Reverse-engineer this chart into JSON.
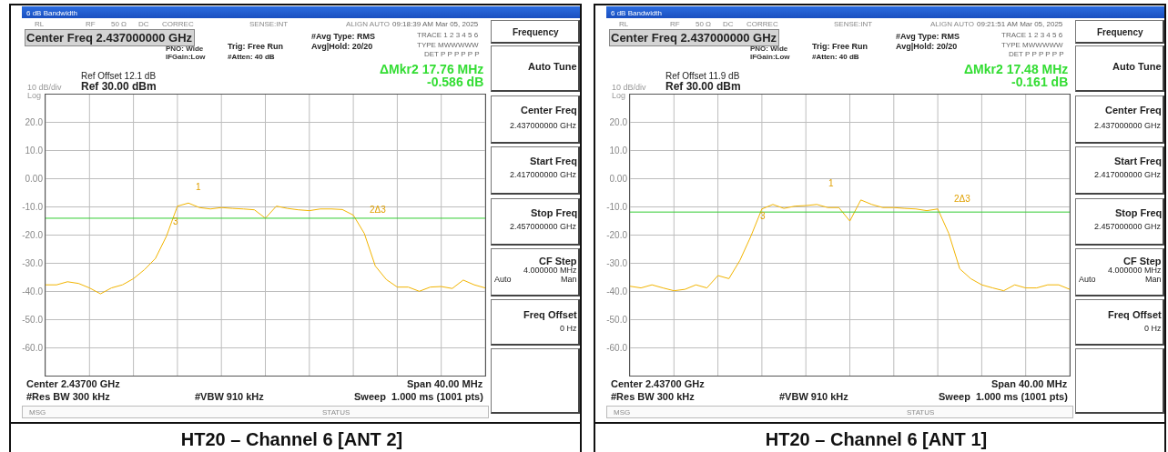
{
  "chart_data": [
    {
      "type": "line",
      "title": "HT20 – Channel 6 [ANT 2]",
      "annotations": [
        "6 dB Bandwidth",
        "RL",
        "RF",
        "50 Ω",
        "DC",
        "CORREC",
        "SENSE:INT",
        "ALIGN AUTO",
        "09:18:39 AM Mar 05, 2025",
        "Center Freq 2.437000000 GHz",
        "PNO: Wide",
        "IFGain:Low",
        "Trig: Free Run",
        "#Atten: 40 dB",
        "#Avg Type: RMS",
        "Avg|Hold: 20/20",
        "TRACE 1 2 3 4 5 6",
        "TYPE MWWWWW",
        "DET P P P P P P",
        "Ref Offset 12.1 dB",
        "Ref 30.00 dBm",
        "10 dB/div",
        "Log",
        "ΔMkr2 17.76 MHz",
        "-0.586 dB",
        "Center 2.43700 GHz",
        "Span 40.00 MHz",
        "#Res BW 300 kHz",
        "#VBW 910 kHz",
        "Sweep  1.000 ms (1001 pts)",
        "MSG",
        "STATUS",
        "Frequency",
        "Auto Tune",
        "Center Freq",
        "2.437000000 GHz",
        "Start Freq",
        "2.417000000 GHz",
        "Stop Freq",
        "2.457000000 GHz",
        "CF Step",
        "4.000000 MHz",
        "Auto",
        "Man",
        "Freq Offset",
        "0 Hz",
        "1",
        "3",
        "2Δ3"
      ],
      "categories": [
        null,
        null,
        null,
        null,
        null,
        null,
        null,
        null,
        null,
        null,
        null,
        null,
        null,
        null,
        null,
        null,
        null,
        null,
        null,
        null,
        null,
        null,
        null,
        null,
        null,
        null,
        null,
        null,
        null,
        null,
        null,
        null,
        null,
        null,
        null,
        null,
        null,
        null,
        null,
        null,
        null
      ],
      "values": [
        -37.7,
        -37.7,
        -36.6,
        -37.2,
        -38.8,
        -40.9,
        -38.8,
        -37.7,
        -35.5,
        -32.3,
        -28.3,
        -20.4,
        -9.7,
        -8.6,
        -10.2,
        -10.7,
        -10.2,
        -10.5,
        -10.7,
        -11.0,
        -14.0,
        -9.7,
        -10.5,
        -11.0,
        -11.3,
        -10.7,
        -10.7,
        -10.9,
        -12.9,
        -19.4,
        -31.0,
        -35.8,
        -38.5,
        -38.5,
        -40.0,
        -38.5,
        -38.3,
        -39.0,
        -36.0,
        -37.7,
        -38.8
      ],
      "color": "#f2b400",
      "ylim": [
        -70,
        30
      ],
      "yticks": [
        {
          "value": 20,
          "label": "20.0"
        },
        {
          "value": 10,
          "label": "10.0"
        },
        {
          "value": 0,
          "label": "0.00"
        },
        {
          "value": -10,
          "label": "-10.0"
        },
        {
          "value": -20,
          "label": "-20.0"
        },
        {
          "value": -30,
          "label": "-30.0"
        },
        {
          "value": -40,
          "label": "-40.0"
        },
        {
          "value": -50,
          "label": "-50.0"
        },
        {
          "value": -60,
          "label": "-60.0"
        }
      ],
      "tick_labels": "y",
      "grid": true,
      "ref_lines": [
        {
          "axis": "y",
          "value": -14.0,
          "color": "#33cc33"
        }
      ]
    },
    {
      "type": "line",
      "title": "HT20 – Channel 6 [ANT 1]",
      "annotations": [
        "6 dB Bandwidth",
        "RL",
        "RF",
        "50 Ω",
        "DC",
        "CORREC",
        "SENSE:INT",
        "ALIGN AUTO",
        "09:21:51 AM Mar 05, 2025",
        "Center Freq 2.437000000 GHz",
        "PNO: Wide",
        "IFGain:Low",
        "Trig: Free Run",
        "#Atten: 40 dB",
        "#Avg Type: RMS",
        "Avg|Hold: 20/20",
        "TRACE 1 2 3 4 5 6",
        "TYPE MWWWWW",
        "DET P P P P P P",
        "Ref Offset 11.9 dB",
        "Ref 30.00 dBm",
        "10 dB/div",
        "Log",
        "ΔMkr2 17.48 MHz",
        "-0.161 dB",
        "Center 2.43700 GHz",
        "Span 40.00 MHz",
        "#Res BW 300 kHz",
        "#VBW 910 kHz",
        "Sweep  1.000 ms (1001 pts)",
        "MSG",
        "STATUS",
        "Frequency",
        "Auto Tune",
        "Center Freq",
        "2.437000000 GHz",
        "Start Freq",
        "2.417000000 GHz",
        "Stop Freq",
        "2.457000000 GHz",
        "CF Step",
        "4.000000 MHz",
        "Auto",
        "Man",
        "Freq Offset",
        "0 Hz",
        "1",
        "3",
        "2Δ3"
      ],
      "categories": [
        null,
        null,
        null,
        null,
        null,
        null,
        null,
        null,
        null,
        null,
        null,
        null,
        null,
        null,
        null,
        null,
        null,
        null,
        null,
        null,
        null,
        null,
        null,
        null,
        null,
        null,
        null,
        null,
        null,
        null,
        null,
        null,
        null,
        null,
        null,
        null,
        null,
        null,
        null,
        null,
        null
      ],
      "values": [
        -38.2,
        -38.8,
        -37.7,
        -38.8,
        -39.8,
        -39.3,
        -37.7,
        -38.8,
        -34.4,
        -35.5,
        -29.0,
        -20.4,
        -10.7,
        -9.1,
        -10.5,
        -9.7,
        -9.5,
        -9.1,
        -10.2,
        -10.2,
        -15.0,
        -7.5,
        -9.1,
        -10.2,
        -10.2,
        -10.5,
        -10.7,
        -11.3,
        -10.7,
        -19.4,
        -32.0,
        -35.5,
        -37.7,
        -38.8,
        -39.8,
        -37.7,
        -38.8,
        -38.8,
        -37.7,
        -37.7,
        -39.3
      ],
      "color": "#f2b400",
      "ylim": [
        -70,
        30
      ],
      "yticks": [
        {
          "value": 20,
          "label": "20.0"
        },
        {
          "value": 10,
          "label": "10.0"
        },
        {
          "value": 0,
          "label": "0.00"
        },
        {
          "value": -10,
          "label": "-10.0"
        },
        {
          "value": -20,
          "label": "-20.0"
        },
        {
          "value": -30,
          "label": "-30.0"
        },
        {
          "value": -40,
          "label": "-40.0"
        },
        {
          "value": -50,
          "label": "-50.0"
        },
        {
          "value": -60,
          "label": "-60.0"
        }
      ],
      "tick_labels": "y",
      "grid": true,
      "ref_lines": [
        {
          "axis": "y",
          "value": -11.8,
          "color": "#33cc33"
        }
      ]
    }
  ]
}
